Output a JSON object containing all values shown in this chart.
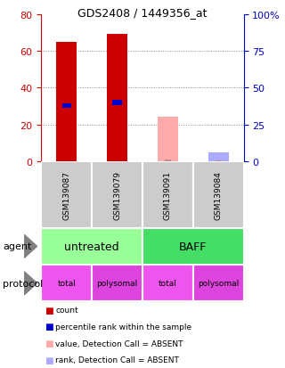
{
  "title": "GDS2408 / 1449356_at",
  "samples": [
    "GSM139087",
    "GSM139079",
    "GSM139091",
    "GSM139084"
  ],
  "count_values": [
    65,
    69,
    0,
    0
  ],
  "rank_values_pct": [
    38,
    40,
    0,
    0
  ],
  "absent_value_values": [
    0,
    0,
    24,
    0
  ],
  "absent_rank_pct": [
    0,
    0,
    0,
    6
  ],
  "absent_small_bar_value": [
    0,
    0,
    1,
    0
  ],
  "ylim_left": [
    0,
    80
  ],
  "ylim_right": [
    0,
    100
  ],
  "yticks_left": [
    0,
    20,
    40,
    60,
    80
  ],
  "yticks_right": [
    0,
    25,
    50,
    75,
    100
  ],
  "agent_data": [
    [
      "untreated",
      0,
      2,
      "#99ff99"
    ],
    [
      "BAFF",
      2,
      4,
      "#44dd66"
    ]
  ],
  "protocol_labels": [
    "total",
    "polysomal",
    "total",
    "polysomal"
  ],
  "protocol_colors": [
    "#ee55ee",
    "#dd44dd",
    "#ee55ee",
    "#dd44dd"
  ],
  "sample_bg_color": "#cccccc",
  "left_axis_color": "#cc0000",
  "right_axis_color": "#0000cc",
  "bar_color_present": "#cc0000",
  "bar_color_rank": "#0000cc",
  "bar_color_absent_value": "#ffaaaa",
  "bar_color_absent_rank": "#aaaaff",
  "bar_color_absent_small": "#ddaaaa",
  "present_indices": [
    0,
    1
  ],
  "absent_value_indices": [
    2
  ],
  "absent_rank_indices": [
    3
  ],
  "legend_items": [
    [
      "#cc0000",
      "count"
    ],
    [
      "#0000cc",
      "percentile rank within the sample"
    ],
    [
      "#ffaaaa",
      "value, Detection Call = ABSENT"
    ],
    [
      "#aaaaff",
      "rank, Detection Call = ABSENT"
    ]
  ]
}
